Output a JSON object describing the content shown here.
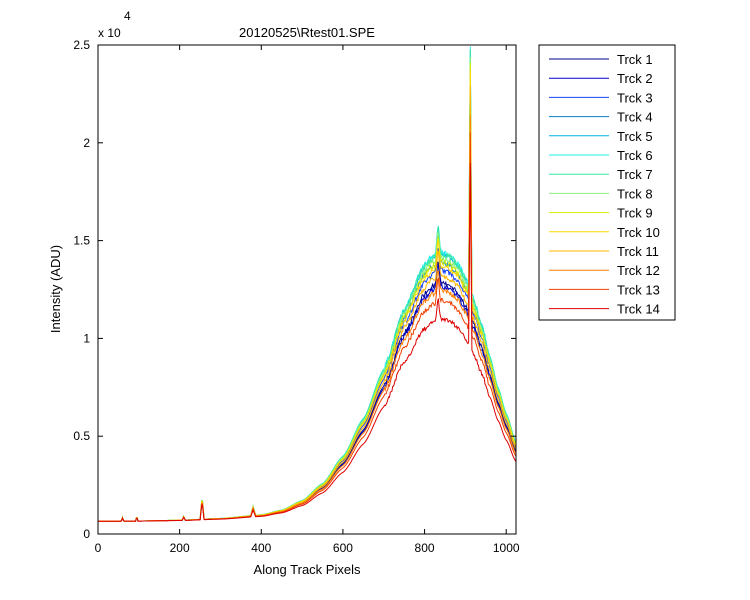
{
  "chart_data": {
    "type": "line",
    "title": "20120525\\Rtest01.SPE",
    "xlabel": "Along Track Pixels",
    "ylabel": "Intensity (ADU)",
    "y_exponent_label": "x 10",
    "y_exponent": "4",
    "xlim": [
      0,
      1024
    ],
    "ylim": [
      0,
      25000
    ],
    "x_ticks": [
      0,
      200,
      400,
      600,
      800,
      1000
    ],
    "x_tick_labels": [
      "0",
      "200",
      "400",
      "600",
      "800",
      "1000"
    ],
    "y_ticks": [
      0,
      5000,
      10000,
      15000,
      20000,
      25000
    ],
    "y_tick_labels": [
      "0",
      "0.5",
      "1",
      "1.5",
      "2",
      "2.5"
    ],
    "grid": false,
    "legend_position": "outside-right",
    "base_profile": {
      "x": [
        0,
        100,
        200,
        300,
        400,
        450,
        500,
        550,
        600,
        650,
        700,
        750,
        800,
        820,
        840,
        860,
        880,
        900,
        920,
        940,
        960,
        980,
        1000,
        1024
      ],
      "y": [
        650,
        660,
        690,
        760,
        900,
        1080,
        1450,
        2100,
        3150,
        4600,
        6500,
        8800,
        10500,
        10850,
        11000,
        10900,
        10600,
        10000,
        9200,
        8200,
        7000,
        5800,
        4800,
        3700
      ]
    },
    "spikes": [
      {
        "x": 60,
        "height": 150,
        "width": 3
      },
      {
        "x": 95,
        "height": 200,
        "width": 3
      },
      {
        "x": 210,
        "height": 150,
        "width": 4
      },
      {
        "x": 255,
        "height": 900,
        "width": 5
      },
      {
        "x": 380,
        "height": 350,
        "width": 6
      },
      {
        "x": 833,
        "height": 1200,
        "width": 6
      },
      {
        "x": 912,
        "height": 9000,
        "width": 4
      }
    ],
    "series": [
      {
        "name": "Trck 1",
        "color": "#00008f",
        "scale": 1.18
      },
      {
        "name": "Trck 2",
        "color": "#0000c8",
        "scale": 1.16
      },
      {
        "name": "Trck 3",
        "color": "#1440ff",
        "scale": 1.24
      },
      {
        "name": "Trck 4",
        "color": "#0a7ec8",
        "scale": 1.28
      },
      {
        "name": "Trck 5",
        "color": "#00b4e6",
        "scale": 1.32
      },
      {
        "name": "Trck 6",
        "color": "#21f0e6",
        "scale": 1.33
      },
      {
        "name": "Trck 7",
        "color": "#3ee6a0",
        "scale": 1.32
      },
      {
        "name": "Trck 8",
        "color": "#8cf07a",
        "scale": 1.3
      },
      {
        "name": "Trck 9",
        "color": "#d2f000",
        "scale": 1.28
      },
      {
        "name": "Trck 10",
        "color": "#ffd800",
        "scale": 1.26
      },
      {
        "name": "Trck 11",
        "color": "#ffb400",
        "scale": 1.21
      },
      {
        "name": "Trck 12",
        "color": "#ff8000",
        "scale": 1.14
      },
      {
        "name": "Trck 13",
        "color": "#f04000",
        "scale": 1.09
      },
      {
        "name": "Trck 14",
        "color": "#dc0000",
        "scale": 1.0
      }
    ]
  }
}
